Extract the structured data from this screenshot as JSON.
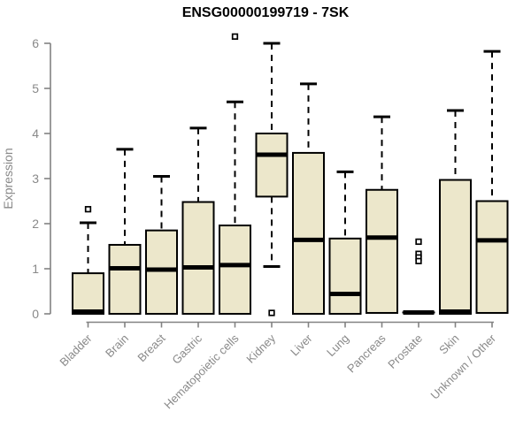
{
  "chart_data": {
    "type": "boxplot",
    "title": "ENSG00000199719 - 7SK",
    "xlabel": "",
    "ylabel": "Expression",
    "ylim": [
      0,
      6
    ],
    "y_ticks": [
      0,
      1,
      2,
      3,
      4,
      5,
      6
    ],
    "grid": false,
    "legend": "none",
    "categories": [
      "Bladder",
      "Brain",
      "Breast",
      "Gastric",
      "Hematopoietic cells",
      "Kidney",
      "Liver",
      "Lung",
      "Pancreas",
      "Prostate",
      "Skin",
      "Unknown / Other"
    ],
    "series": [
      {
        "name": "Bladder",
        "whisker_low": 0,
        "q1": 0,
        "median": 0.05,
        "q3": 0.9,
        "whisker_high": 2.02,
        "outliers": [
          2.32
        ]
      },
      {
        "name": "Brain",
        "whisker_low": 0,
        "q1": 0,
        "median": 1.01,
        "q3": 1.53,
        "whisker_high": 3.65,
        "outliers": []
      },
      {
        "name": "Breast",
        "whisker_low": 0,
        "q1": 0,
        "median": 0.98,
        "q3": 1.85,
        "whisker_high": 3.05,
        "outliers": []
      },
      {
        "name": "Gastric",
        "whisker_low": 0,
        "q1": 0,
        "median": 1.03,
        "q3": 2.48,
        "whisker_high": 4.12,
        "outliers": []
      },
      {
        "name": "Hematopoietic cells",
        "whisker_low": 0,
        "q1": 0,
        "median": 1.08,
        "q3": 1.96,
        "whisker_high": 4.7,
        "outliers": [
          6.15
        ]
      },
      {
        "name": "Kidney",
        "whisker_low": 1.05,
        "q1": 2.6,
        "median": 3.53,
        "q3": 4.0,
        "whisker_high": 6.0,
        "outliers": [
          0.02
        ]
      },
      {
        "name": "Liver",
        "whisker_low": 0,
        "q1": 0,
        "median": 1.64,
        "q3": 3.57,
        "whisker_high": 5.1,
        "outliers": []
      },
      {
        "name": "Lung",
        "whisker_low": 0,
        "q1": 0,
        "median": 0.44,
        "q3": 1.67,
        "whisker_high": 3.15,
        "outliers": []
      },
      {
        "name": "Pancreas",
        "whisker_low": 0.02,
        "q1": 0.02,
        "median": 1.69,
        "q3": 2.75,
        "whisker_high": 4.37,
        "outliers": []
      },
      {
        "name": "Prostate",
        "whisker_low": 0.03,
        "q1": 0.03,
        "median": 0.03,
        "q3": 0.03,
        "whisker_high": 0.03,
        "outliers": [
          1.6,
          1.33,
          1.25,
          1.17
        ]
      },
      {
        "name": "Skin",
        "whisker_low": 0,
        "q1": 0,
        "median": 0.05,
        "q3": 2.97,
        "whisker_high": 4.51,
        "outliers": []
      },
      {
        "name": "Unknown / Other",
        "whisker_low": 0.02,
        "q1": 0.02,
        "median": 1.63,
        "q3": 2.5,
        "whisker_high": 5.82,
        "outliers": []
      }
    ],
    "colors": {
      "box_fill": "#ECE7CB",
      "box_border": "#000000",
      "median": "#000000",
      "whisker": "#000000",
      "outlier": "#000000",
      "axis": "#828282",
      "axis_text": "#898989",
      "title_text": "#000000",
      "background": "#FFFFFF"
    }
  }
}
